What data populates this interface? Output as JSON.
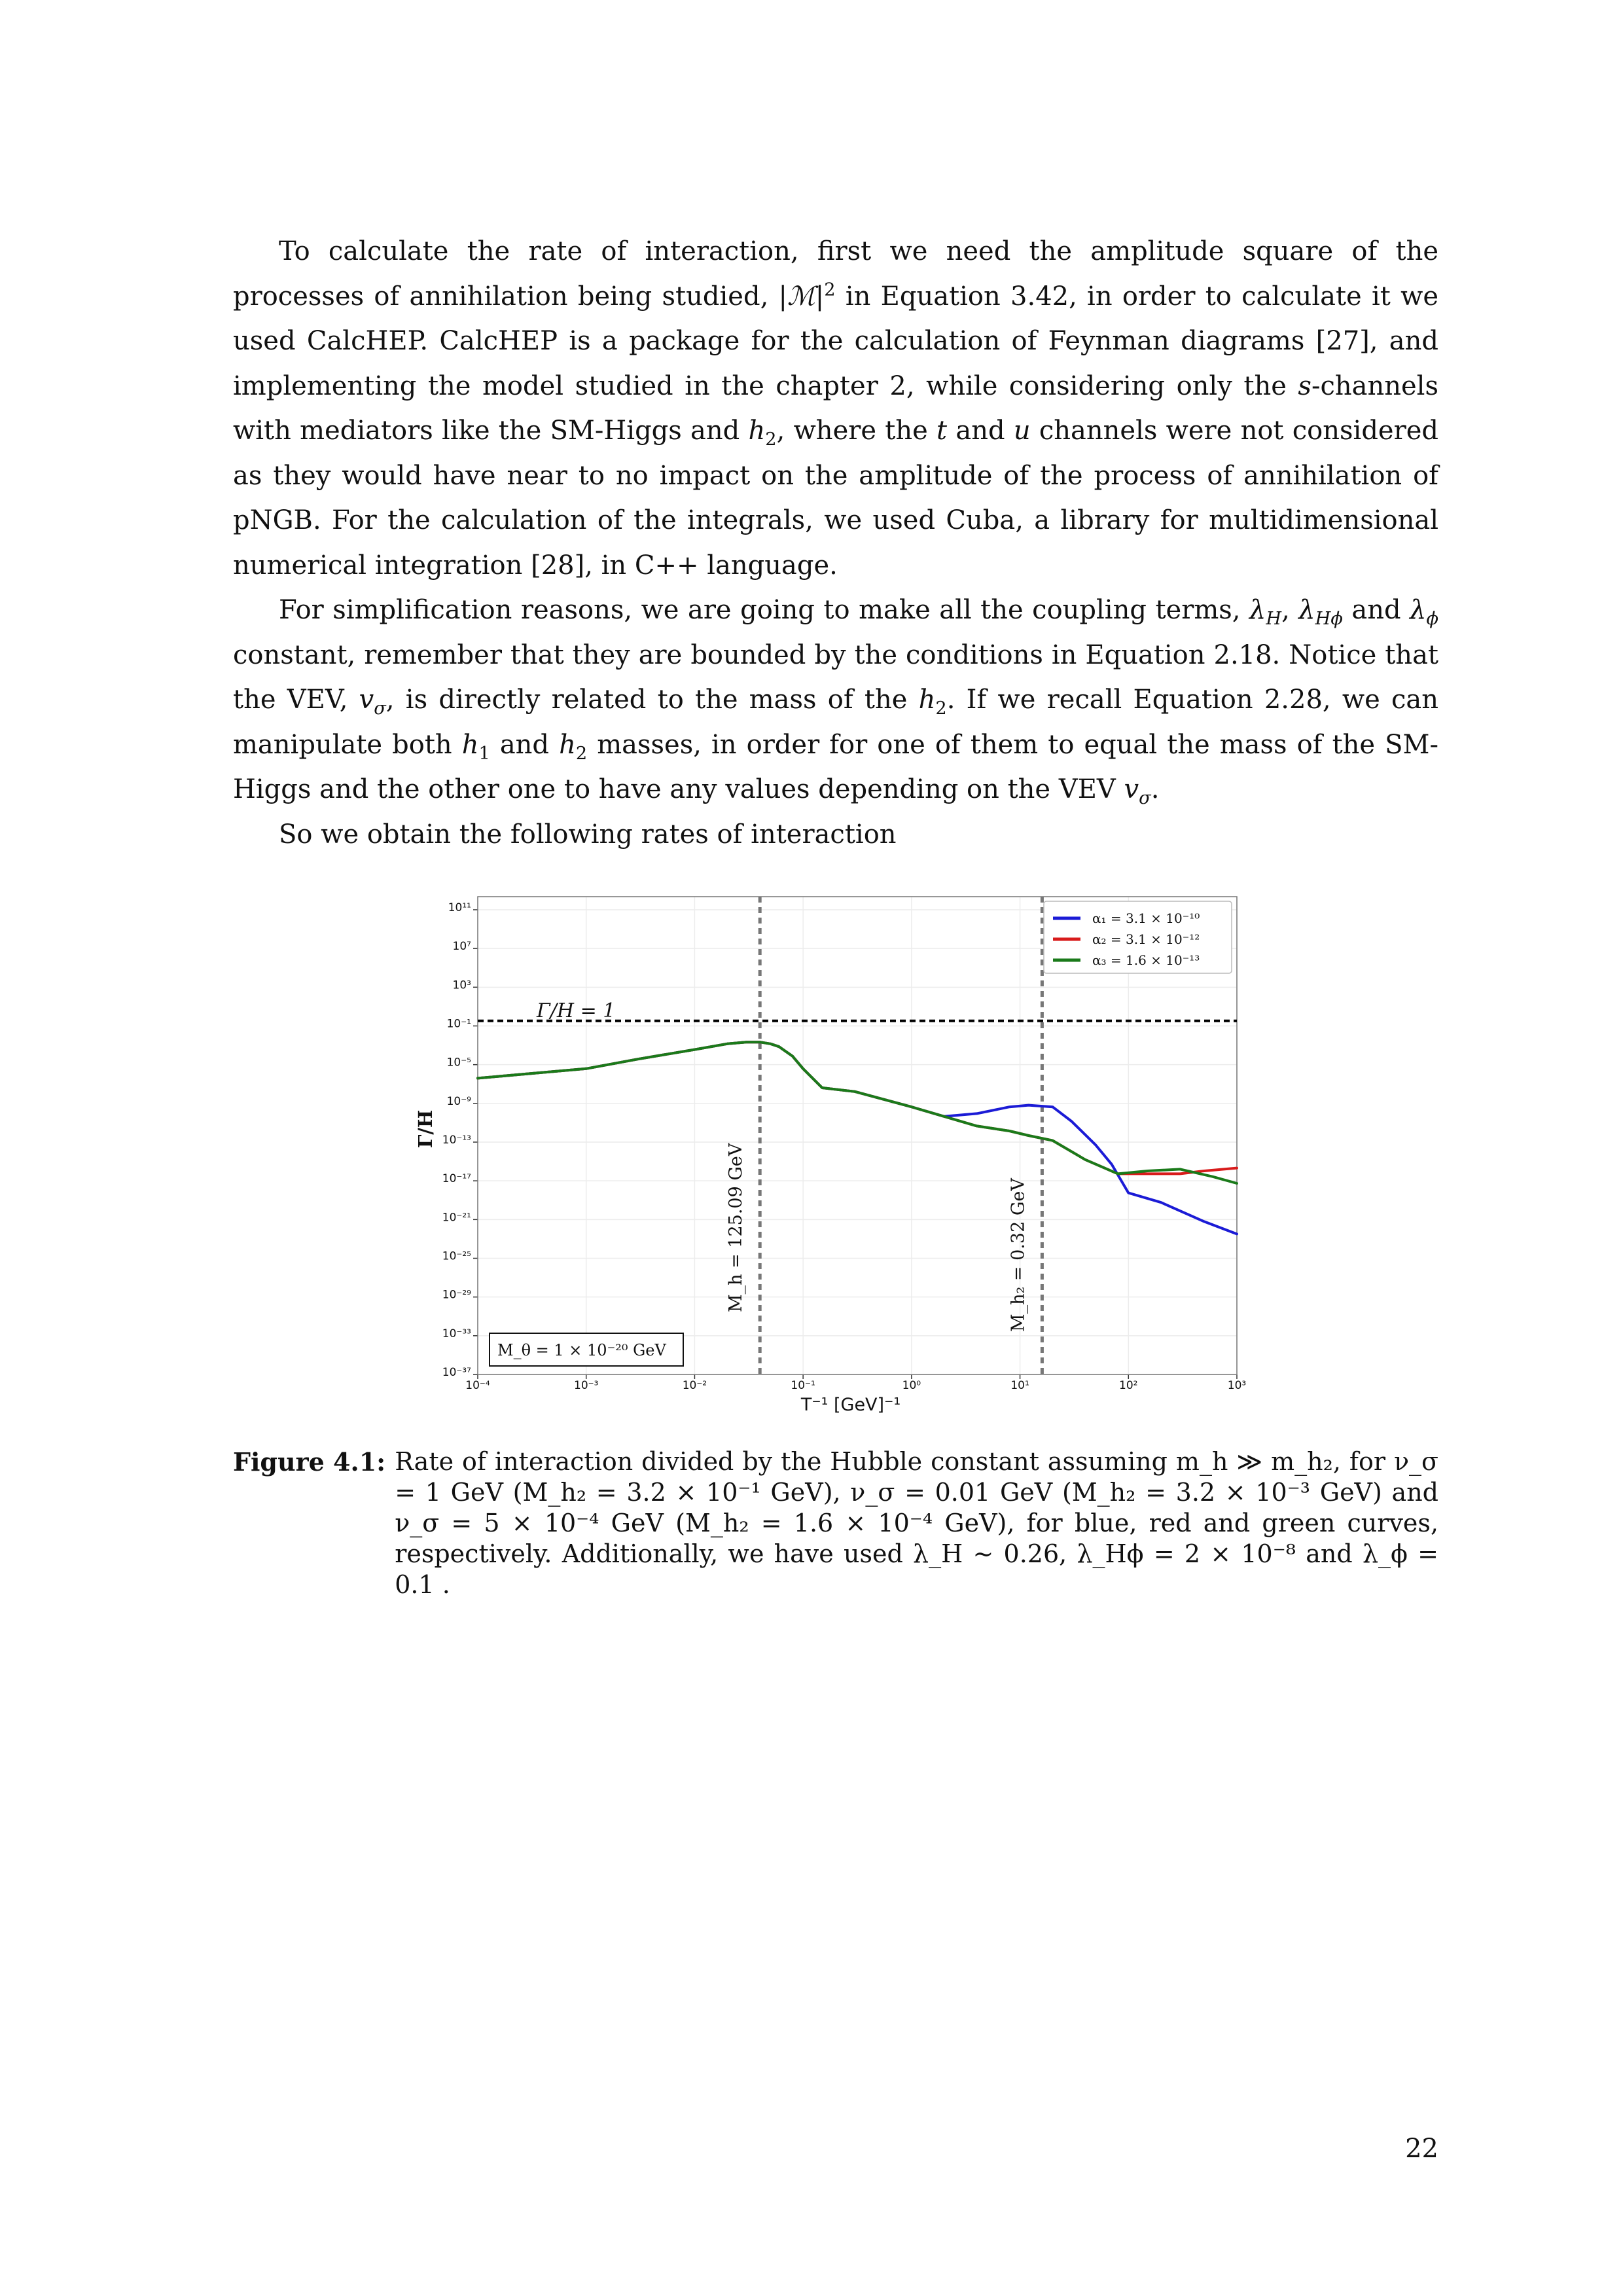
{
  "body": {
    "paragraph1": {
      "t1": "To calculate the rate of interaction, first we need the amplitude square of the processes of annihilation being studied, |",
      "m_symbol": "ℳ",
      "t2": "|",
      "sq": "2",
      "t3": " in Equation 3.42, in order to calculate it we used CalcHEP. CalcHEP is a package for the calculation of Feynman diagrams [27], and implementing the model studied in the chapter 2, while considering only the ",
      "s": "s",
      "t4": "-channels with mediators like the SM-Higgs and ",
      "h": "h",
      "two": "2",
      "t5": ", where the ",
      "t": "t",
      "t6": " and ",
      "u": "u",
      "t7": " channels were not considered as they would have near to no impact on the amplitude of the process of annihilation of pNGB. For the calculation of the integrals, we used Cuba, a library for multidimensional numerical integration [28], in C++ language."
    },
    "paragraph2": {
      "t1": "For simplification reasons, we are going to make all the coupling terms, ",
      "lambda": "λ",
      "H": "H",
      "comma": ", ",
      "Hphi": "Hϕ",
      "t2": " and ",
      "phi": "ϕ",
      "t3": " constant, remember that they are bounded by the conditions in Equation 2.18. Notice that the VEV, ",
      "v": "v",
      "sigma": "σ",
      "t4": ", is directly related to the mass of the ",
      "h": "h",
      "two": "2",
      "t5": ". If we recall Equation 2.28, we can manipulate both ",
      "one": "1",
      "t6": " and ",
      "t7": " masses, in order for one of them to equal the mass of the SM-Higgs and the other one to have any values depending on the VEV ",
      "t8": "."
    },
    "paragraph3": "So we obtain the following rates of interaction"
  },
  "chart_data": {
    "type": "line",
    "xlabel": "T⁻¹ [GeV]⁻¹",
    "ylabel": "Γ/H",
    "x_scale": "log",
    "y_scale": "log",
    "xlim": [
      0.0001,
      1000
    ],
    "ylim": [
      1e-37,
      10000000000000.0
    ],
    "x_ticks": [
      "10⁻⁴",
      "10⁻³",
      "10⁻²",
      "10⁻¹",
      "10⁰",
      "10¹",
      "10²",
      "10³"
    ],
    "y_ticks": [
      "10⁻³⁷",
      "10⁻³³",
      "10⁻²⁹",
      "10⁻²⁵",
      "10⁻²¹",
      "10⁻¹⁷",
      "10⁻¹³",
      "10⁻⁹",
      "10⁻⁵",
      "10⁻¹",
      "10³",
      "10⁷",
      "10¹¹"
    ],
    "grid": true,
    "legend_position": "top-right",
    "series": [
      {
        "name": "α₁ = 3.1 × 10⁻¹⁰",
        "color": "#1b1bd6",
        "x": [
          0.0001,
          0.0003,
          0.001,
          0.003,
          0.01,
          0.02,
          0.03,
          0.04,
          0.05,
          0.06,
          0.08,
          0.1,
          0.15,
          0.3,
          1.0,
          2.0,
          4.0,
          8.0,
          12.0,
          20.0,
          30.0,
          50.0,
          70.0,
          100.0,
          200.0,
          500.0,
          1000.0
        ],
        "y": [
          1e-06,
          3e-06,
          1e-05,
          0.0001,
          0.001,
          0.004,
          0.006,
          0.006,
          0.004,
          0.002,
          0.0002,
          1e-05,
          1e-07,
          4e-08,
          1e-09,
          1e-10,
          2e-10,
          1e-09,
          1.5e-09,
          1e-09,
          3e-11,
          1e-13,
          1e-15,
          1e-18,
          1e-19,
          1e-21,
          5e-23
        ]
      },
      {
        "name": "α₂ = 3.1 × 10⁻¹²",
        "color": "#d81b1b",
        "x": [
          0.0001,
          0.0003,
          0.001,
          0.003,
          0.01,
          0.02,
          0.03,
          0.04,
          0.05,
          0.06,
          0.08,
          0.1,
          0.15,
          0.3,
          1.0,
          2.0,
          4.0,
          8.0,
          12.0,
          20.0,
          40.0,
          80.0,
          150.0,
          200.0,
          300.0,
          500.0,
          1000.0
        ],
        "y": [
          1e-06,
          3e-06,
          1e-05,
          0.0001,
          0.001,
          0.004,
          0.006,
          0.006,
          0.004,
          0.002,
          0.0002,
          1e-05,
          1e-07,
          4e-08,
          1e-09,
          1e-10,
          1e-11,
          3e-12,
          1e-12,
          3e-13,
          3e-15,
          1e-16,
          1e-16,
          1e-16,
          1e-16,
          2e-16,
          4e-16
        ]
      },
      {
        "name": "α₃ = 1.6 × 10⁻¹³",
        "color": "#1a7a1a",
        "x": [
          0.0001,
          0.0003,
          0.001,
          0.003,
          0.01,
          0.02,
          0.03,
          0.04,
          0.05,
          0.06,
          0.08,
          0.1,
          0.15,
          0.3,
          1.0,
          2.0,
          4.0,
          8.0,
          12.0,
          20.0,
          40.0,
          80.0,
          150.0,
          300.0,
          600.0,
          1000.0
        ],
        "y": [
          1e-06,
          3e-06,
          1e-05,
          0.0001,
          0.001,
          0.004,
          0.006,
          0.006,
          0.004,
          0.002,
          0.0002,
          1e-05,
          1e-07,
          4e-08,
          1e-09,
          1e-10,
          1e-11,
          3e-12,
          1e-12,
          3e-13,
          3e-15,
          1e-16,
          2e-16,
          3e-16,
          5e-17,
          1e-17
        ]
      }
    ],
    "hline": {
      "y": 1,
      "label": "Γ/H = 1",
      "color": "#000000"
    },
    "vlines": [
      {
        "x": 0.04,
        "label": "M_h = 125.09 GeV",
        "color": "#777777"
      },
      {
        "x": 16,
        "label": "M_h₂ = 0.32 GeV",
        "color": "#777777"
      }
    ],
    "annotation": "M_θ = 1 × 10⁻²⁰ GeV"
  },
  "caption": {
    "label": "Figure 4.1:",
    "text": "Rate of interaction divided by the Hubble constant assuming m_h ≫ m_h₂, for ν_σ = 1 GeV (M_h₂ = 3.2 × 10⁻¹ GeV), ν_σ = 0.01 GeV (M_h₂ = 3.2 × 10⁻³ GeV) and ν_σ = 5 × 10⁻⁴ GeV (M_h₂ = 1.6 × 10⁻⁴ GeV), for blue, red and green curves, respectively. Additionally, we have used λ_H ∼ 0.26, λ_Hϕ = 2 × 10⁻⁸ and λ_ϕ = 0.1 ."
  },
  "page_number": "22"
}
